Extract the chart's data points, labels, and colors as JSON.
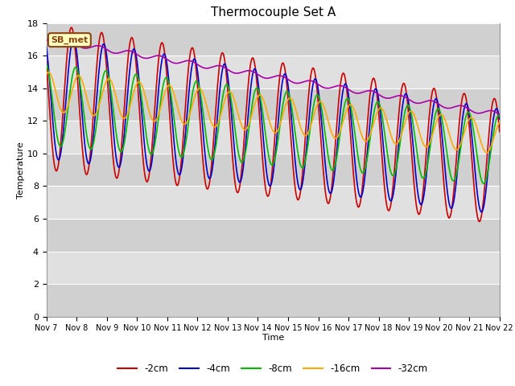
{
  "title": "Thermocouple Set A",
  "xlabel": "Time",
  "ylabel": "Temperature",
  "ylim": [
    0,
    18
  ],
  "yticks": [
    0,
    2,
    4,
    6,
    8,
    10,
    12,
    14,
    16,
    18
  ],
  "background_color": "#ffffff",
  "plot_bg_color": "#e8e8e8",
  "annotation_text": "SB_met",
  "annotation_bg": "#ffffc0",
  "annotation_border": "#8b4513",
  "series": {
    "-2cm": {
      "color": "#cc0000",
      "lw": 1.2
    },
    "-4cm": {
      "color": "#0000cc",
      "lw": 1.2
    },
    "-8cm": {
      "color": "#00bb00",
      "lw": 1.2
    },
    "-16cm": {
      "color": "#ffaa00",
      "lw": 1.2
    },
    "-32cm": {
      "color": "#aa00aa",
      "lw": 1.2
    }
  },
  "legend_labels": [
    "-2cm",
    "-4cm",
    "-8cm",
    "-16cm",
    "-32cm"
  ],
  "legend_colors": [
    "#cc0000",
    "#0000cc",
    "#00bb00",
    "#ffaa00",
    "#aa00aa"
  ],
  "xtick_labels": [
    "Nov 7",
    "Nov 8",
    "Nov 9",
    "Nov 10",
    "Nov 11",
    "Nov 12",
    "Nov 13",
    "Nov 14",
    "Nov 15",
    "Nov 16",
    "Nov 17",
    "Nov 18",
    "Nov 19",
    "Nov 20",
    "Nov 21",
    "Nov 22"
  ],
  "band_colors": [
    "#d8d8d8",
    "#e8e8e8"
  ]
}
